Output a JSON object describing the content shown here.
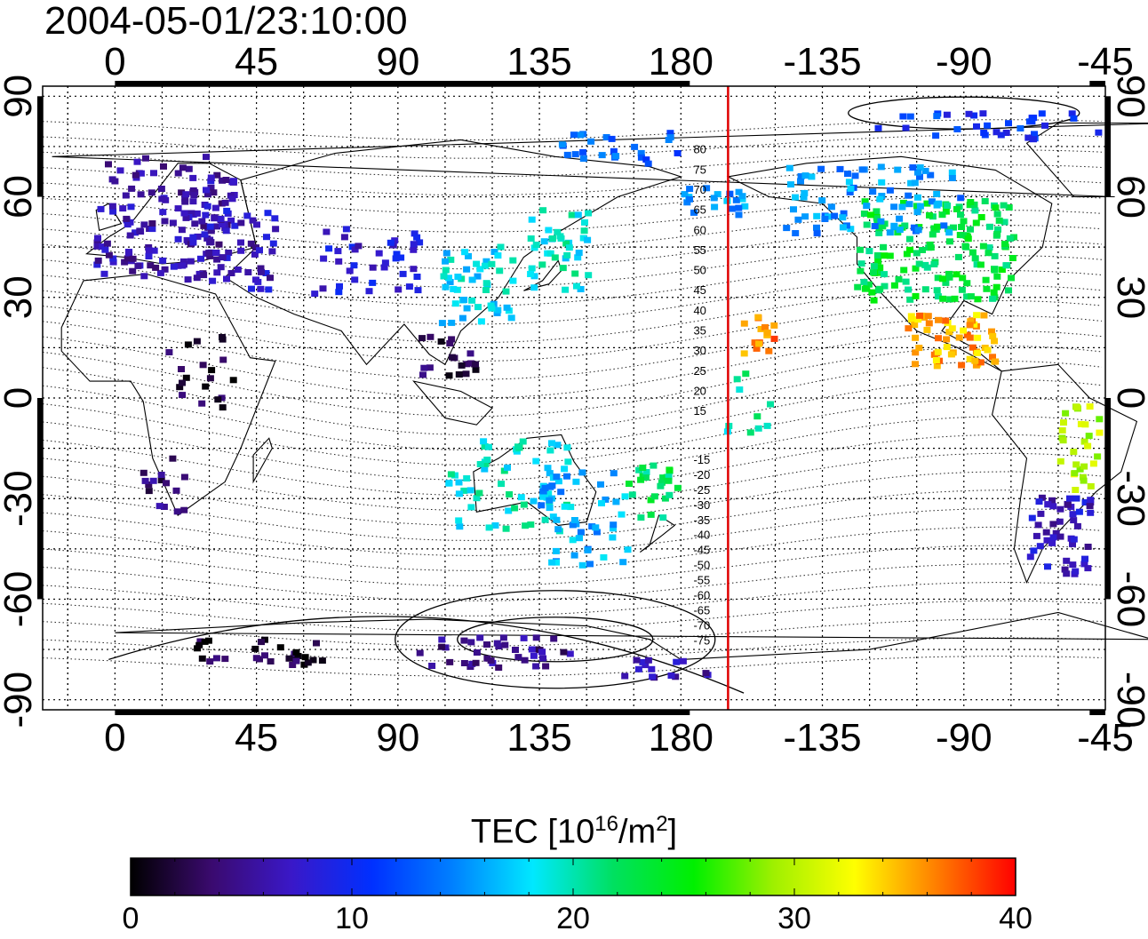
{
  "title": "2004-05-01/23:10:00",
  "map": {
    "x_ticks": [
      0,
      45,
      90,
      135,
      180,
      -135,
      -90,
      -45
    ],
    "x_tick_labels": [
      "0",
      "45",
      "90",
      "135",
      "180",
      "-135",
      "-90",
      "-45"
    ],
    "y_ticks": [
      90,
      60,
      30,
      0,
      -30,
      -60,
      -90
    ],
    "y_tick_labels": [
      "90",
      "60",
      "30",
      "0",
      "-30",
      "-60",
      "-90"
    ],
    "lon_range": [
      -23,
      315
    ],
    "lat_range": [
      -93,
      93
    ],
    "grid": "dotted",
    "marker_longitude": -165,
    "marker_color": "#e00000",
    "contour_labels": [
      "80",
      "75",
      "70",
      "65",
      "60",
      "55",
      "50",
      "45",
      "40",
      "35",
      "30",
      "25",
      "20",
      "15",
      "-15",
      "-20",
      "-25",
      "-30",
      "-35",
      "-40",
      "-45",
      "-50",
      "-55",
      "-60",
      "-65",
      "-70",
      "-75"
    ],
    "coastlines": "world"
  },
  "colorbar": {
    "title_main": "TEC  [10",
    "title_exp": "16",
    "title_mid": "/m",
    "title_exp2": "2",
    "title_end": "]",
    "min": 0,
    "max": 40,
    "tick_labels": [
      "0",
      "10",
      "20",
      "30",
      "40"
    ],
    "colormap": [
      "#000000",
      "#3a0a6e",
      "#3a18c8",
      "#0030ff",
      "#0080ff",
      "#00e8ff",
      "#00e060",
      "#00f000",
      "#a0f000",
      "#ffff00",
      "#ff8000",
      "#ff0000"
    ]
  }
}
